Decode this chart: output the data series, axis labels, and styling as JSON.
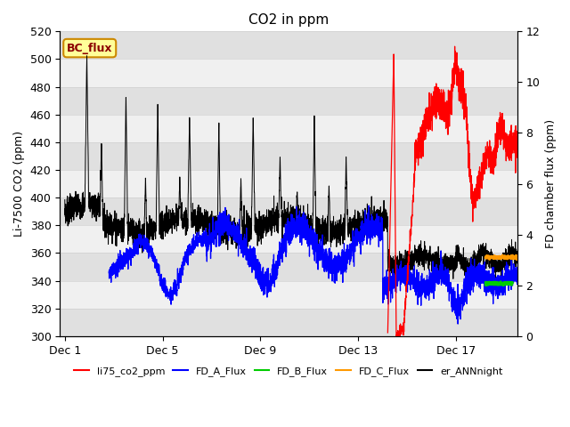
{
  "title": "CO2 in ppm",
  "ylabel_left": "Li-7500 CO2 (ppm)",
  "ylabel_right": "FD chamber flux (ppm)",
  "ylim_left": [
    300,
    520
  ],
  "ylim_right": [
    0,
    12
  ],
  "xtick_positions": [
    0,
    4,
    8,
    12,
    16
  ],
  "xtick_labels": [
    "Dec 1",
    "Dec 5",
    "Dec 9",
    "Dec 13",
    "Dec 17"
  ],
  "yticks_left": [
    300,
    320,
    340,
    360,
    380,
    400,
    420,
    440,
    460,
    480,
    500,
    520
  ],
  "yticks_right": [
    0,
    2,
    4,
    6,
    8,
    10,
    12
  ],
  "legend_items": [
    {
      "label": "li75_co2_ppm",
      "color": "#ff0000"
    },
    {
      "label": "FD_A_Flux",
      "color": "#0000ff"
    },
    {
      "label": "FD_B_Flux",
      "color": "#00cc00"
    },
    {
      "label": "FD_C_Flux",
      "color": "#ff9900"
    },
    {
      "label": "er_ANNnight",
      "color": "#000000"
    }
  ],
  "bc_flux_label": "BC_flux",
  "bc_flux_color": "#8B0000",
  "bc_flux_box_facecolor": "#ffff99",
  "bc_flux_box_edgecolor": "#cc8800",
  "band_colors": [
    "#e8e8e8",
    "#f5f5f5"
  ],
  "title_fontsize": 11,
  "axis_fontsize": 9,
  "tick_fontsize": 9
}
